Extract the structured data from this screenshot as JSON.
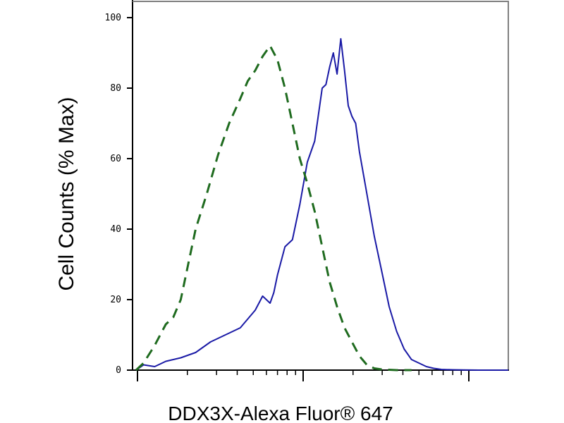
{
  "chart_data": {
    "type": "line",
    "title": "",
    "xlabel": "DDX3X-Alexa Fluor® 647",
    "ylabel": "Cell Counts (% Max)",
    "x_scale": "log",
    "ylim": [
      0,
      100
    ],
    "y_ticks": [
      "0",
      "20",
      "40",
      "60",
      "80",
      "100"
    ],
    "grid": false,
    "legend": "none",
    "series": [
      {
        "color": "#1a1aa6",
        "style": "solid",
        "x": [
          0.0,
          0.02,
          0.05,
          0.08,
          0.12,
          0.16,
          0.2,
          0.24,
          0.28,
          0.32,
          0.34,
          0.36,
          0.37,
          0.38,
          0.4,
          0.42,
          0.44,
          0.46,
          0.48,
          0.5,
          0.51,
          0.52,
          0.53,
          0.54,
          0.55,
          0.56,
          0.57,
          0.58,
          0.59,
          0.6,
          0.62,
          0.64,
          0.66,
          0.68,
          0.7,
          0.72,
          0.74,
          0.76,
          0.78,
          0.8,
          0.82,
          0.85,
          0.88,
          0.92,
          0.96,
          1.0
        ],
        "y": [
          0,
          1.5,
          1,
          2.5,
          3.5,
          5,
          8,
          10,
          12,
          17,
          21,
          19,
          22,
          27,
          35,
          37,
          47,
          59,
          65,
          80,
          81,
          86,
          90,
          84,
          94,
          85,
          75,
          72,
          70,
          62,
          50,
          38,
          28,
          18,
          11,
          6,
          3,
          2,
          1,
          0.5,
          0.2,
          0.1,
          0.05,
          0,
          0,
          0
        ]
      },
      {
        "color": "#1f6b1f",
        "style": "dashed",
        "x": [
          0.0,
          0.02,
          0.05,
          0.08,
          0.1,
          0.12,
          0.14,
          0.16,
          0.19,
          0.22,
          0.25,
          0.28,
          0.3,
          0.32,
          0.34,
          0.36,
          0.38,
          0.4,
          0.42,
          0.44,
          0.46,
          0.48,
          0.5,
          0.52,
          0.54,
          0.56,
          0.58,
          0.6,
          0.62,
          0.64,
          0.66,
          0.68,
          0.7,
          0.72,
          0.74
        ],
        "y": [
          0,
          2,
          7,
          13,
          15,
          20,
          30,
          40,
          50,
          61,
          70,
          77,
          82,
          85,
          89,
          92,
          88,
          80,
          70,
          60,
          53,
          45,
          35,
          25,
          18,
          12,
          8,
          4,
          1.5,
          0.5,
          0.2,
          0.1,
          0,
          0,
          0
        ]
      }
    ]
  }
}
